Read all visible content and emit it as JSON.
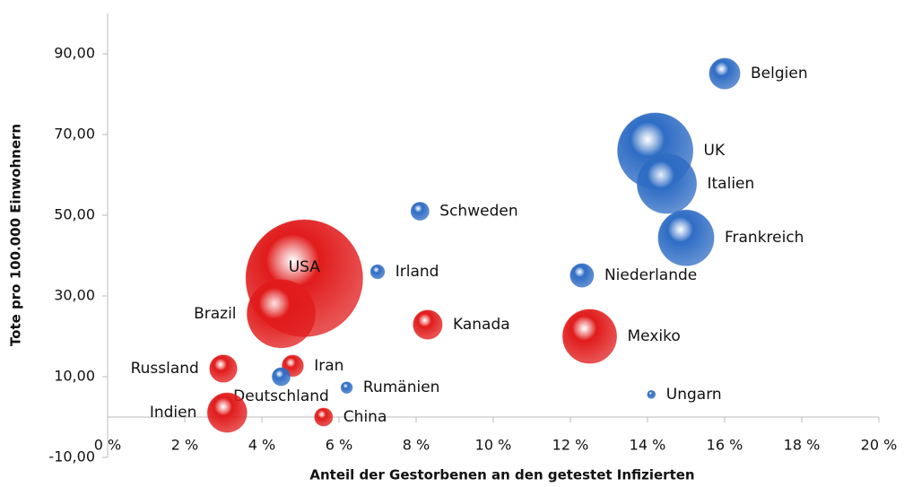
{
  "chart_data": {
    "type": "scatter",
    "x_label": "Anteil der Gestorbenen an den getestet Infizierten",
    "y_label": "Tote pro 100.000 Einwohnern",
    "labels": [
      "Belgien",
      "UK",
      "Italien",
      "Frankreich",
      "Niederlande",
      "Schweden",
      "Irland",
      "USA",
      "Brazil",
      "Kanada",
      "Mexiko",
      "Russland",
      "Iran",
      "Deutschland",
      "Rumänien",
      "Ungarn",
      "Indien",
      "China"
    ],
    "x": [
      16.0,
      14.2,
      14.5,
      15.0,
      12.3,
      8.1,
      7.0,
      5.1,
      4.5,
      8.3,
      12.5,
      3.0,
      4.8,
      4.5,
      6.2,
      14.1,
      3.1,
      5.6
    ],
    "values": [
      85.1,
      66.0,
      57.8,
      44.4,
      35.1,
      51.0,
      36.0,
      34.4,
      25.6,
      22.9,
      20.0,
      12.0,
      12.7,
      10.0,
      7.3,
      5.6,
      1.1,
      0.0
    ],
    "sizes": [
      2.9,
      17.6,
      10.9,
      9.6,
      1.7,
      1.0,
      0.6,
      42.3,
      14.4,
      2.6,
      9.0,
      2.3,
      1.4,
      1.0,
      0.4,
      0.2,
      4.8,
      1.0
    ],
    "colors": [
      "#2e6cc4",
      "#2e6cc4",
      "#2e6cc4",
      "#2e6cc4",
      "#2e6cc4",
      "#2e6cc4",
      "#2e6cc4",
      "#e11b1b",
      "#e11b1b",
      "#e11b1b",
      "#e11b1b",
      "#e11b1b",
      "#e11b1b",
      "#2e6cc4",
      "#2e6cc4",
      "#2e6cc4",
      "#e11b1b",
      "#e11b1b"
    ],
    "xlim": [
      0,
      20
    ],
    "xticks": [
      {
        "value": 0,
        "label": "0 %"
      },
      {
        "value": 2,
        "label": "2 %"
      },
      {
        "value": 4,
        "label": "4 %"
      },
      {
        "value": 6,
        "label": "6 %"
      },
      {
        "value": 8,
        "label": "8 %"
      },
      {
        "value": 10,
        "label": "10 %"
      },
      {
        "value": 12,
        "label": "12 %"
      },
      {
        "value": 14,
        "label": "14 %"
      },
      {
        "value": 16,
        "label": "16 %"
      },
      {
        "value": 18,
        "label": "18 %"
      },
      {
        "value": 20,
        "label": "20 %"
      }
    ],
    "ylim": [
      -10,
      100
    ],
    "yticks": [
      {
        "value": -10,
        "label": "-10,00"
      },
      {
        "value": 10,
        "label": "10,00"
      },
      {
        "value": 30,
        "label": "30,00"
      },
      {
        "value": 50,
        "label": "50,00"
      },
      {
        "value": 70,
        "label": "70,00"
      },
      {
        "value": 90,
        "label": "90,00"
      }
    ]
  }
}
